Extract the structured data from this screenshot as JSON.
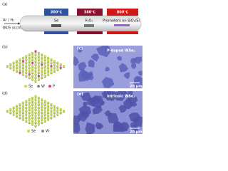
{
  "panels": {
    "a": {
      "label": "(a)",
      "zones": [
        "300℃",
        "380℃",
        "800℃"
      ],
      "sources": [
        "Se",
        "P₂O₅",
        "Promoters on SiO₂/Si"
      ],
      "gas": "Ar / H₂",
      "flow": "80/5 sccm"
    },
    "b": {
      "label": "(b)",
      "legend": [
        "Se",
        "W",
        "P"
      ]
    },
    "c": {
      "label": "(c)",
      "caption": "P-doped WSe₂",
      "scale": "20 μm"
    },
    "d": {
      "label": "(d)",
      "legend": [
        "Se",
        "W"
      ]
    },
    "e": {
      "label": "(e)",
      "caption": "intrinsic WSe₂",
      "scale": "20 μm"
    }
  }
}
